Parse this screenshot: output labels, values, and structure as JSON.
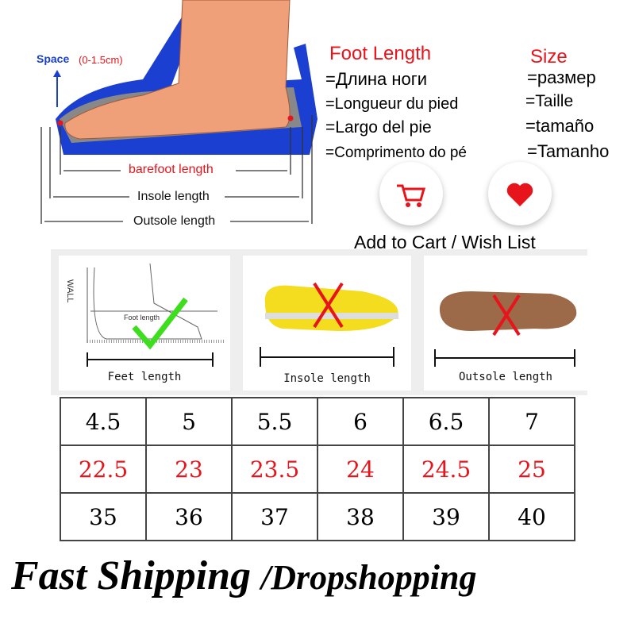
{
  "diagram": {
    "space_label": "Space",
    "space_range": "(0-1.5cm)",
    "barefoot_label": "barefoot length",
    "insole_label": "Insole length",
    "outsole_label": "Outsole length"
  },
  "foot_length": {
    "heading": "Foot Length",
    "translations": [
      "=Длина ноги",
      "=Longueur du pied",
      "=Largo del pie",
      "=Comprimento do pé"
    ]
  },
  "size": {
    "heading": "Size",
    "translations": [
      "=размер",
      "=Taille",
      "=tamaño",
      "=Tamanho"
    ]
  },
  "actions": {
    "cart_icon": "shopping-cart-icon",
    "wish_icon": "heart-icon",
    "label": "Add to Cart / Wish List"
  },
  "measure_panels": [
    {
      "caption": "Feet length",
      "wall": "WALL",
      "inner": "Foot length",
      "mark": "check"
    },
    {
      "caption": "Insole length",
      "mark": "cross"
    },
    {
      "caption": "Outsole length",
      "mark": "cross"
    }
  ],
  "size_table": {
    "rows": [
      {
        "color": "#111111",
        "values": [
          "4.5",
          "5",
          "5.5",
          "6",
          "6.5",
          "7"
        ]
      },
      {
        "color": "#e8141b",
        "values": [
          "22.5",
          "23",
          "23.5",
          "24",
          "24.5",
          "25"
        ]
      },
      {
        "color": "#111111",
        "values": [
          "35",
          "36",
          "37",
          "38",
          "39",
          "40"
        ]
      }
    ]
  },
  "footer": {
    "text": "Fast Shipping",
    "sep": "/",
    "text2": "Dropshopping"
  },
  "colors": {
    "red": "#e8141b",
    "blue": "#1a3fd1",
    "green": "#3dde1d"
  }
}
